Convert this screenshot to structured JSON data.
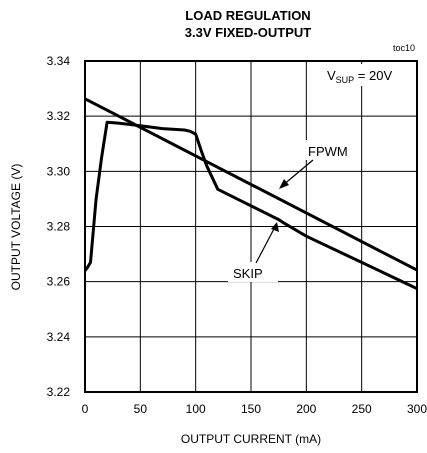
{
  "chart_data": {
    "type": "line",
    "title": "LOAD REGULATION",
    "subtitle": "3.3V FIXED-OUTPUT",
    "figure_id": "toc10",
    "xlabel": "OUTPUT CURRENT (mA)",
    "ylabel": "OUTPUT VOLTAGE (V)",
    "xlim": [
      0,
      300
    ],
    "ylim": [
      3.22,
      3.34
    ],
    "x_ticks": [
      0,
      50,
      100,
      150,
      200,
      250,
      300
    ],
    "y_ticks": [
      3.22,
      3.24,
      3.26,
      3.28,
      3.3,
      3.32,
      3.34
    ],
    "x_tick_labels": [
      "0",
      "50",
      "100",
      "150",
      "200",
      "250",
      "300"
    ],
    "y_tick_labels": [
      "3.22",
      "3.24",
      "3.26",
      "3.28",
      "3.30",
      "3.32",
      "3.34"
    ],
    "grid": true,
    "condition": {
      "main": "V",
      "sub": "SUP",
      "rest": " = 20V"
    },
    "series": [
      {
        "name": "FPWM",
        "x": [
          0,
          300
        ],
        "y": [
          3.3263,
          3.2642
        ]
      },
      {
        "name": "SKIP",
        "x": [
          0,
          2,
          5,
          10,
          15,
          20,
          30,
          50,
          70,
          90,
          95,
          100,
          105,
          110,
          120,
          140,
          170,
          175,
          180,
          200,
          250,
          300
        ],
        "y": [
          3.264,
          3.265,
          3.267,
          3.29,
          3.305,
          3.3178,
          3.3175,
          3.3165,
          3.3155,
          3.315,
          3.3145,
          3.3135,
          3.3075,
          3.302,
          3.2935,
          3.2895,
          3.2835,
          3.2825,
          3.2812,
          3.2765,
          3.267,
          3.2575
        ]
      }
    ],
    "annotations": [
      {
        "text": "FPWM",
        "points_to": "FPWM"
      },
      {
        "text": "SKIP",
        "points_to": "SKIP"
      }
    ]
  }
}
